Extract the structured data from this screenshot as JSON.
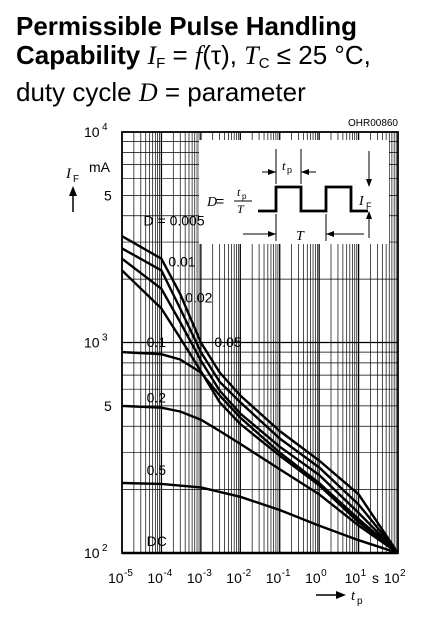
{
  "title": {
    "line1": "Permissible Pulse Handling",
    "line2_bold": "Capability",
    "line2_if": "I",
    "line2_if_sub": "F",
    "line2_eq": " = ",
    "line2_f": "f",
    "line2_tau": "(τ)",
    "line2_comma": ", ",
    "line2_tc": "T",
    "line2_tc_sub": "C",
    "line2_rest": " ≤ 25 °C,",
    "line3_a": "duty cycle ",
    "line3_d": "D",
    "line3_b": " =  parameter"
  },
  "chart_data": {
    "type": "line",
    "code": "OHR00860",
    "x_scale": "log",
    "y_scale": "log",
    "xlim": [
      1e-05,
      100
    ],
    "ylim": [
      100,
      10000
    ],
    "x_ticks": [
      {
        "base": "10",
        "exp": "-5"
      },
      {
        "base": "10",
        "exp": "-4"
      },
      {
        "base": "10",
        "exp": "-3"
      },
      {
        "base": "10",
        "exp": "-2"
      },
      {
        "base": "10",
        "exp": "-1"
      },
      {
        "base": "10",
        "exp": "0"
      },
      {
        "base": "10",
        "exp": "1"
      },
      {
        "base": "10",
        "exp": "2"
      }
    ],
    "x_unit": "s",
    "y_ticks": [
      {
        "base": "10",
        "exp": "4",
        "value": 10000
      },
      {
        "base": "5",
        "exp": "",
        "value": 5000
      },
      {
        "base": "10",
        "exp": "3",
        "value": 1000
      },
      {
        "base": "5",
        "exp": "",
        "value": 500
      },
      {
        "base": "10",
        "exp": "2",
        "value": 100
      }
    ],
    "y_label": "I",
    "y_label_sub": "F",
    "y_unit": "mA",
    "x_label": "t",
    "x_label_sub": "p",
    "series": [
      {
        "name": "D = 0.005",
        "points": [
          [
            1e-05,
            3200
          ],
          [
            0.0001,
            2500
          ],
          [
            0.0003,
            1700
          ],
          [
            0.001,
            1000
          ],
          [
            0.003,
            720
          ],
          [
            0.01,
            560
          ],
          [
            0.1,
            380
          ],
          [
            1,
            275
          ],
          [
            10,
            190
          ],
          [
            100,
            100
          ]
        ]
      },
      {
        "name": "0.01",
        "points": [
          [
            1e-05,
            2800
          ],
          [
            0.0001,
            2200
          ],
          [
            0.0003,
            1450
          ],
          [
            0.001,
            900
          ],
          [
            0.003,
            650
          ],
          [
            0.01,
            520
          ],
          [
            0.1,
            350
          ],
          [
            1,
            255
          ],
          [
            10,
            170
          ],
          [
            100,
            100
          ]
        ]
      },
      {
        "name": "0.02",
        "points": [
          [
            1e-05,
            2500
          ],
          [
            0.0001,
            1800
          ],
          [
            0.0003,
            1250
          ],
          [
            0.001,
            820
          ],
          [
            0.003,
            590
          ],
          [
            0.01,
            460
          ],
          [
            0.1,
            320
          ],
          [
            1,
            235
          ],
          [
            10,
            155
          ],
          [
            100,
            100
          ]
        ]
      },
      {
        "name": "0.05",
        "points": [
          [
            1e-05,
            2200
          ],
          [
            0.0001,
            1450
          ],
          [
            0.0003,
            1050
          ],
          [
            0.001,
            730
          ],
          [
            0.003,
            520
          ],
          [
            0.01,
            410
          ],
          [
            0.1,
            290
          ],
          [
            1,
            210
          ],
          [
            10,
            140
          ],
          [
            100,
            100
          ]
        ]
      },
      {
        "name": "0.1",
        "points": [
          [
            1e-05,
            900
          ],
          [
            0.0001,
            880
          ],
          [
            0.0003,
            830
          ],
          [
            0.001,
            720
          ],
          [
            0.003,
            560
          ],
          [
            0.01,
            440
          ],
          [
            0.1,
            300
          ],
          [
            1,
            215
          ],
          [
            10,
            145
          ],
          [
            100,
            100
          ]
        ]
      },
      {
        "name": "0.2",
        "points": [
          [
            1e-05,
            500
          ],
          [
            0.0001,
            490
          ],
          [
            0.0003,
            470
          ],
          [
            0.001,
            430
          ],
          [
            0.003,
            380
          ],
          [
            0.01,
            330
          ],
          [
            0.1,
            250
          ],
          [
            1,
            190
          ],
          [
            10,
            135
          ],
          [
            100,
            100
          ]
        ]
      },
      {
        "name": "0.5",
        "points": [
          [
            1e-05,
            215
          ],
          [
            0.0001,
            213
          ],
          [
            0.001,
            205
          ],
          [
            0.01,
            185
          ],
          [
            0.1,
            160
          ],
          [
            1,
            135
          ],
          [
            10,
            115
          ],
          [
            100,
            100
          ]
        ]
      },
      {
        "name": "DC",
        "points": [
          [
            1e-05,
            100
          ],
          [
            100,
            100
          ]
        ]
      }
    ],
    "inset": {
      "formula_d": "D",
      "formula_eq": " = ",
      "formula_num": "t",
      "formula_num_sub": "p",
      "formula_den": "T",
      "tp_label": "t",
      "tp_sub": "p",
      "T_label": "T",
      "if_label": "I",
      "if_sub": "F"
    }
  }
}
